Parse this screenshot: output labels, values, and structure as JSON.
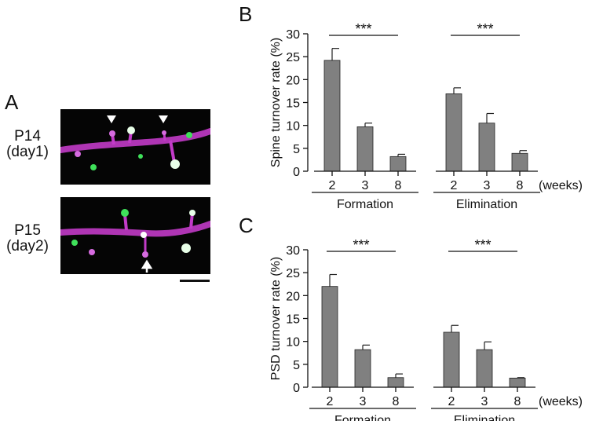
{
  "panels": {
    "a": "A",
    "b": "B",
    "c": "C"
  },
  "micrographs": [
    {
      "line1": "P14",
      "line2": "(day1)"
    },
    {
      "line1": "P15",
      "line2": "(day2)"
    }
  ],
  "colors": {
    "bar": "#808080",
    "dendrite": "#c23bc8",
    "psd": "#3fe05a",
    "background": "#050505"
  },
  "chart_data": [
    {
      "type": "bar",
      "panel": "B",
      "ylabel": "Spine turnover rate (%)",
      "ylim": [
        0,
        30
      ],
      "yticks": [
        0,
        5,
        10,
        15,
        20,
        25,
        30
      ],
      "x_unit": "(weeks)",
      "groups": [
        {
          "name": "Formation",
          "categories": [
            "2",
            "3",
            "8"
          ],
          "values": [
            24.2,
            9.7,
            3.2
          ],
          "errors": [
            2.6,
            0.8,
            0.5
          ],
          "significance": "***"
        },
        {
          "name": "Elimination",
          "categories": [
            "2",
            "3",
            "8"
          ],
          "values": [
            16.9,
            10.5,
            3.9
          ],
          "errors": [
            1.3,
            2.1,
            0.6
          ],
          "significance": "***"
        }
      ]
    },
    {
      "type": "bar",
      "panel": "C",
      "ylabel": "PSD turnover rate (%)",
      "ylim": [
        0,
        30
      ],
      "yticks": [
        0,
        5,
        10,
        15,
        20,
        25,
        30
      ],
      "x_unit": "(weeks)",
      "groups": [
        {
          "name": "Formation",
          "categories": [
            "2",
            "3",
            "8"
          ],
          "values": [
            22.0,
            8.2,
            2.1
          ],
          "errors": [
            2.6,
            1.0,
            0.8
          ],
          "significance": "***"
        },
        {
          "name": "Elimination",
          "categories": [
            "2",
            "3",
            "8"
          ],
          "values": [
            12.0,
            8.2,
            2.0
          ],
          "errors": [
            1.5,
            1.7,
            0.1
          ],
          "significance": "***"
        }
      ]
    }
  ]
}
